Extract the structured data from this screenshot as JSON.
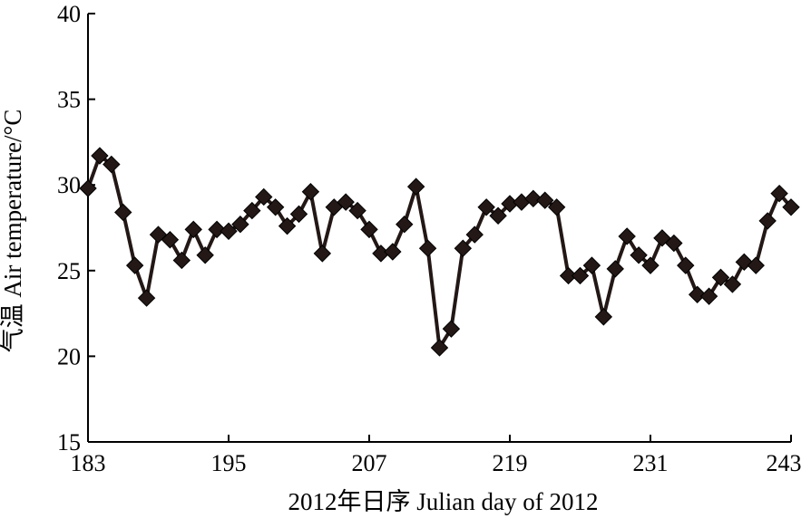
{
  "chart_data": {
    "type": "line",
    "xlabel": "2012年日序  Julian day of 2012",
    "ylabel": "气温  Air temperature/°C",
    "xlim": [
      183,
      243
    ],
    "ylim": [
      15,
      40
    ],
    "x_ticks": [
      183,
      195,
      207,
      219,
      231,
      243
    ],
    "y_ticks": [
      15,
      20,
      25,
      30,
      35,
      40
    ],
    "grid": false,
    "series": [
      {
        "marker": "diamond",
        "color": "#231816",
        "x": [
          183,
          184,
          185,
          186,
          187,
          188,
          189,
          190,
          191,
          192,
          193,
          194,
          195,
          196,
          197,
          198,
          199,
          200,
          201,
          202,
          203,
          204,
          205,
          206,
          207,
          208,
          209,
          210,
          211,
          212,
          213,
          214,
          215,
          216,
          217,
          218,
          219,
          220,
          221,
          222,
          223,
          224,
          225,
          226,
          227,
          228,
          229,
          230,
          231,
          232,
          233,
          234,
          235,
          236,
          237,
          238,
          239,
          240,
          241,
          242,
          243
        ],
        "y": [
          29.8,
          31.7,
          31.2,
          28.4,
          25.3,
          23.4,
          27.1,
          26.8,
          25.6,
          27.4,
          25.9,
          27.4,
          27.3,
          27.7,
          28.5,
          29.3,
          28.7,
          27.6,
          28.3,
          29.6,
          26.0,
          28.7,
          29.0,
          28.5,
          27.4,
          26.0,
          26.1,
          27.7,
          29.9,
          26.3,
          20.5,
          21.6,
          26.3,
          27.1,
          28.7,
          28.2,
          28.9,
          29.0,
          29.2,
          29.1,
          28.7,
          24.7,
          24.7,
          25.3,
          22.3,
          25.1,
          27.0,
          25.9,
          25.3,
          26.9,
          26.6,
          25.3,
          23.6,
          23.5,
          24.6,
          24.2,
          25.5,
          25.3,
          27.9,
          29.5,
          28.7
        ]
      }
    ]
  }
}
